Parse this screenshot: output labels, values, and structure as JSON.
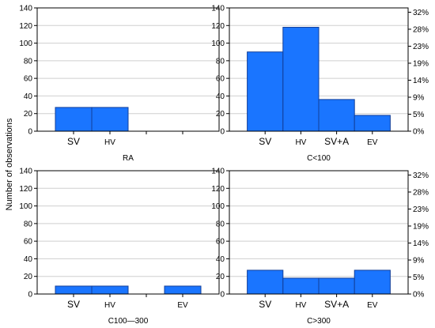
{
  "chart_data": {
    "type": "bar",
    "ylabel": "Number of observations",
    "bar_color": "#1a75ff",
    "bar_edge_color": "#123f99",
    "grid": true,
    "panels": [
      {
        "label": "RA",
        "categories": [
          "SV",
          "HV",
          "",
          ""
        ],
        "values": [
          27,
          27,
          0,
          0
        ],
        "ylim": [
          0,
          140
        ],
        "yticks": [
          0,
          20,
          40,
          60,
          80,
          100,
          120,
          140
        ],
        "right_axis": null
      },
      {
        "label": "C<100",
        "categories": [
          "SV",
          "HV",
          "SV+A",
          "EV"
        ],
        "values": [
          90,
          118,
          36,
          18
        ],
        "ylim": [
          0,
          140
        ],
        "yticks": [
          0,
          20,
          40,
          60,
          80,
          100,
          120,
          140
        ],
        "right_axis": {
          "ticks": [
            0,
            19.3,
            38.6,
            57.9,
            77.2,
            96.5,
            115.8,
            135.1
          ],
          "labels": [
            "0%",
            "5%",
            "9%",
            "14%",
            "19%",
            "23%",
            "28%",
            "32%"
          ]
        }
      },
      {
        "label": "C100—300",
        "categories": [
          "SV",
          "HV",
          "",
          "EV"
        ],
        "values": [
          9,
          9,
          0,
          9
        ],
        "ylim": [
          0,
          140
        ],
        "yticks": [
          0,
          20,
          40,
          60,
          80,
          100,
          120,
          140
        ],
        "right_axis": null
      },
      {
        "label": "C>300",
        "categories": [
          "SV",
          "HV",
          "SV+A",
          "EV"
        ],
        "values": [
          27,
          18,
          18,
          27
        ],
        "ylim": [
          0,
          140
        ],
        "yticks": [
          0,
          20,
          40,
          60,
          80,
          100,
          120,
          140
        ],
        "right_axis": {
          "ticks": [
            0,
            19.3,
            38.6,
            57.9,
            77.2,
            96.5,
            115.8,
            135.1
          ],
          "labels": [
            "0%",
            "5%",
            "9%",
            "14%",
            "19%",
            "23%",
            "28%",
            "32%"
          ]
        }
      }
    ]
  }
}
